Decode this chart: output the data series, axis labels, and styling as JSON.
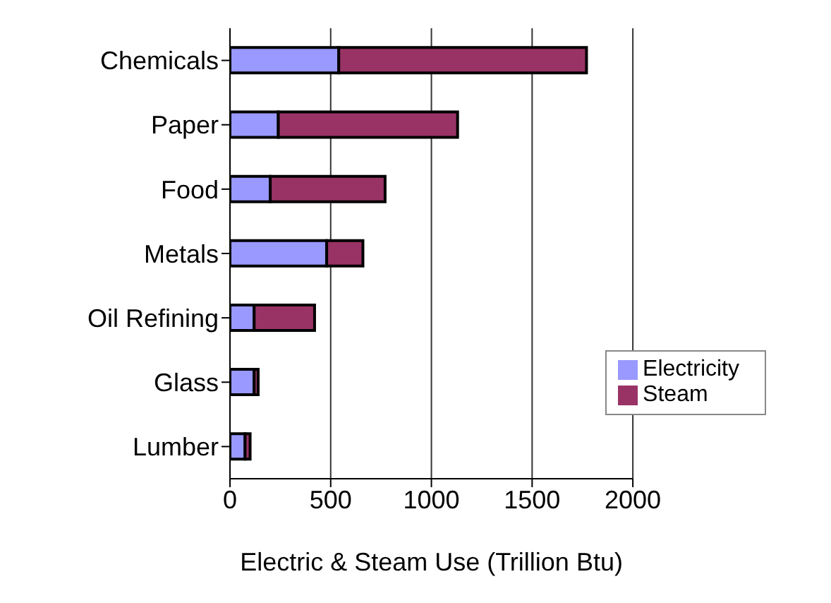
{
  "chart_data": {
    "type": "bar",
    "orientation": "horizontal",
    "stacked": true,
    "xlabel": "Electric & Steam Use (Trillion Btu)",
    "categories": [
      "Chemicals",
      "Paper",
      "Food",
      "Metals",
      "Oil Refining",
      "Glass",
      "Lumber"
    ],
    "series": [
      {
        "name": "Electricity",
        "color": "#9999ff",
        "values": [
          540,
          240,
          200,
          480,
          120,
          120,
          75
        ]
      },
      {
        "name": "Steam",
        "color": "#993366",
        "values": [
          1230,
          890,
          570,
          180,
          300,
          20,
          25
        ]
      }
    ],
    "xlim": [
      0,
      2000
    ],
    "xticks": [
      0,
      500,
      1000,
      1500,
      2000
    ],
    "grid": "x",
    "legend": "bottom right"
  }
}
